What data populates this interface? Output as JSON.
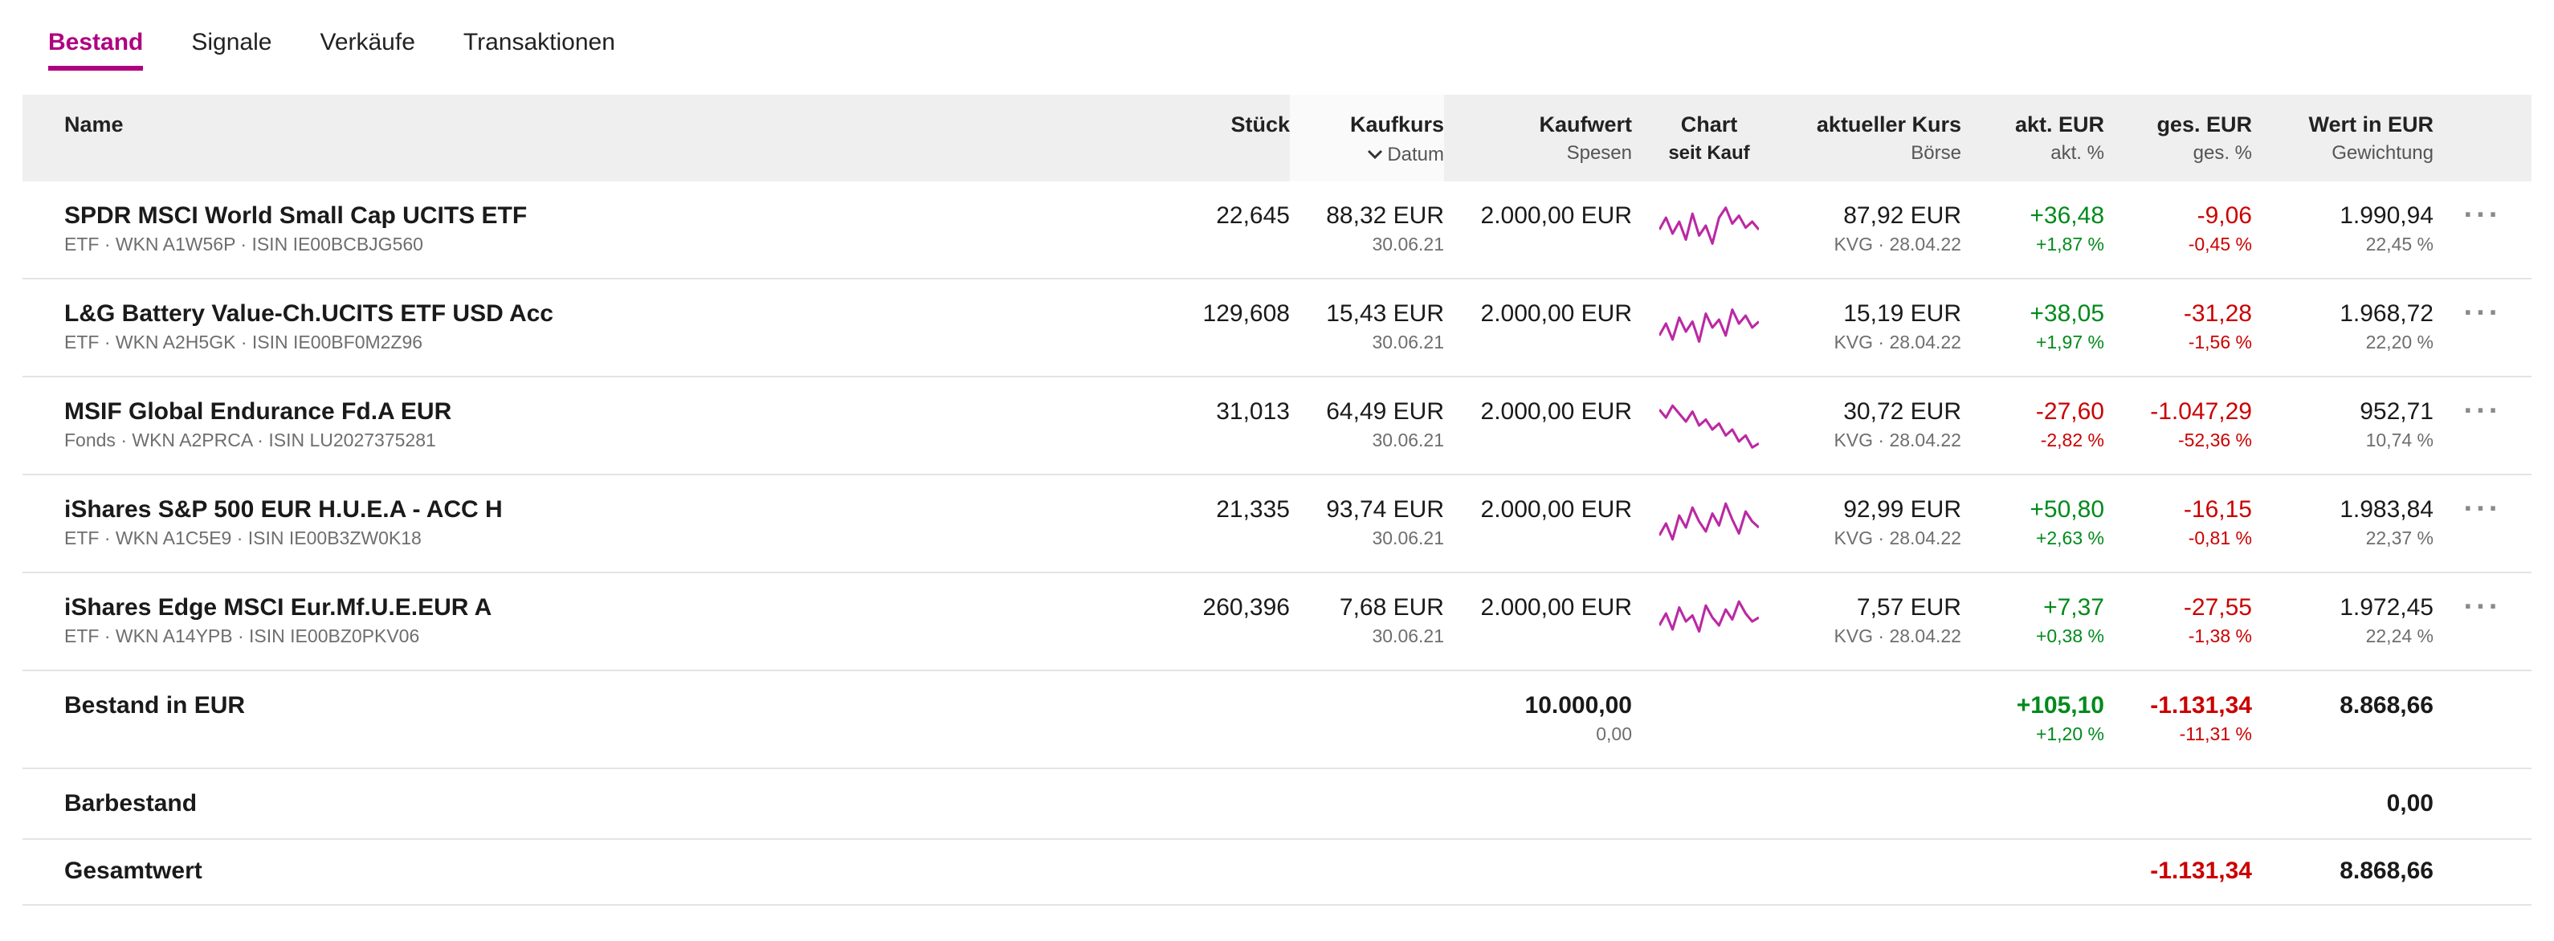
{
  "colors": {
    "accent": "#b00080",
    "sparkline": "#bb29a3",
    "positive": "#008a1c",
    "negative": "#cb0000"
  },
  "icons": {
    "menu": "···"
  },
  "tabs": [
    {
      "label": "Bestand",
      "active": true
    },
    {
      "label": "Signale",
      "active": false
    },
    {
      "label": "Verkäufe",
      "active": false
    },
    {
      "label": "Transaktionen",
      "active": false
    }
  ],
  "header": {
    "name": "Name",
    "stueck": "Stück",
    "kaufkurs": "Kaufkurs",
    "kaufkurs_sub": "Datum",
    "kaufwert": "Kaufwert",
    "kaufwert_sub": "Spesen",
    "chart": "Chart",
    "chart_sub": "seit Kauf",
    "kurs": "aktueller Kurs",
    "kurs_sub": "Börse",
    "akt": "akt. EUR",
    "akt_sub": "akt. %",
    "ges": "ges. EUR",
    "ges_sub": "ges. %",
    "wert": "Wert in EUR",
    "wert_sub": "Gewichtung"
  },
  "rows": [
    {
      "name": "SPDR MSCI World Small Cap UCITS ETF",
      "info": "ETF · WKN A1W56P · ISIN IE00BCBJG560",
      "stueck": "22,645",
      "kaufkurs": "88,32 EUR",
      "datum": "30.06.21",
      "kaufwert": "2.000,00 EUR",
      "kurs": "87,92 EUR",
      "boerse": "KVG · 28.04.22",
      "akt_eur": "+36,48",
      "akt_pct": "+1,87 %",
      "ges_eur": "-9,06",
      "ges_pct": "-0,45 %",
      "wert": "1.990,94",
      "gewichtung": "22,45 %",
      "spark": [
        30,
        18,
        34,
        22,
        40,
        14,
        36,
        26,
        44,
        18,
        8,
        24,
        16,
        28,
        22,
        30
      ]
    },
    {
      "name": "L&G Battery Value-Ch.UCITS ETF USD Acc",
      "info": "ETF · WKN A2H5GK · ISIN IE00BF0M2Z96",
      "stueck": "129,608",
      "kaufkurs": "15,43 EUR",
      "datum": "30.06.21",
      "kaufwert": "2.000,00 EUR",
      "kurs": "15,19 EUR",
      "boerse": "KVG · 28.04.22",
      "akt_eur": "+38,05",
      "akt_pct": "+1,97 %",
      "ges_eur": "-31,28",
      "ges_pct": "-1,56 %",
      "wert": "1.968,72",
      "gewichtung": "22,20 %",
      "spark": [
        38,
        26,
        42,
        20,
        34,
        24,
        44,
        16,
        30,
        22,
        38,
        12,
        26,
        18,
        30,
        24
      ]
    },
    {
      "name": "MSIF Global Endurance Fd.A EUR",
      "info": "Fonds · WKN A2PRCA · ISIN LU2027375281",
      "stueck": "31,013",
      "kaufkurs": "64,49 EUR",
      "datum": "30.06.21",
      "kaufwert": "2.000,00 EUR",
      "kurs": "30,72 EUR",
      "boerse": "KVG · 28.04.22",
      "akt_eur": "-27,60",
      "akt_pct": "-2,82 %",
      "ges_eur": "-1.047,29",
      "ges_pct": "-52,36 %",
      "wert": "952,71",
      "gewichtung": "10,74 %",
      "spark": [
        14,
        22,
        10,
        18,
        26,
        16,
        30,
        24,
        34,
        28,
        40,
        34,
        46,
        40,
        52,
        48
      ]
    },
    {
      "name": "iShares S&P 500 EUR H.U.E.A - ACC H",
      "info": "ETF · WKN A1C5E9 · ISIN IE00B3ZW0K18",
      "stueck": "21,335",
      "kaufkurs": "93,74 EUR",
      "datum": "30.06.21",
      "kaufwert": "2.000,00 EUR",
      "kurs": "92,99 EUR",
      "boerse": "KVG · 28.04.22",
      "akt_eur": "+50,80",
      "akt_pct": "+2,63 %",
      "ges_eur": "-16,15",
      "ges_pct": "-0,81 %",
      "wert": "1.983,84",
      "gewichtung": "22,37 %",
      "spark": [
        42,
        30,
        46,
        22,
        34,
        14,
        28,
        38,
        20,
        32,
        10,
        26,
        40,
        18,
        28,
        34
      ]
    },
    {
      "name": "iShares Edge MSCI Eur.Mf.U.E.EUR A",
      "info": "ETF · WKN A14YPB · ISIN IE00BZ0PKV06",
      "stueck": "260,396",
      "kaufkurs": "7,68 EUR",
      "datum": "30.06.21",
      "kaufwert": "2.000,00 EUR",
      "kurs": "7,57 EUR",
      "boerse": "KVG · 28.04.22",
      "akt_eur": "+7,37",
      "akt_pct": "+0,38 %",
      "ges_eur": "-27,55",
      "ges_pct": "-1,38 %",
      "wert": "1.972,45",
      "gewichtung": "22,24 %",
      "spark": [
        34,
        22,
        38,
        16,
        30,
        24,
        40,
        14,
        26,
        34,
        18,
        28,
        10,
        22,
        30,
        26
      ]
    }
  ],
  "summary": {
    "bestand": {
      "label": "Bestand in EUR",
      "kaufwert": "10.000,00",
      "spesen": "0,00",
      "akt_eur": "+105,10",
      "akt_pct": "+1,20 %",
      "ges_eur": "-1.131,34",
      "ges_pct": "-11,31 %",
      "wert": "8.868,66"
    },
    "barbestand": {
      "label": "Barbestand",
      "wert": "0,00"
    },
    "gesamtwert": {
      "label": "Gesamtwert",
      "ges_eur": "-1.131,34",
      "wert": "8.868,66"
    }
  }
}
